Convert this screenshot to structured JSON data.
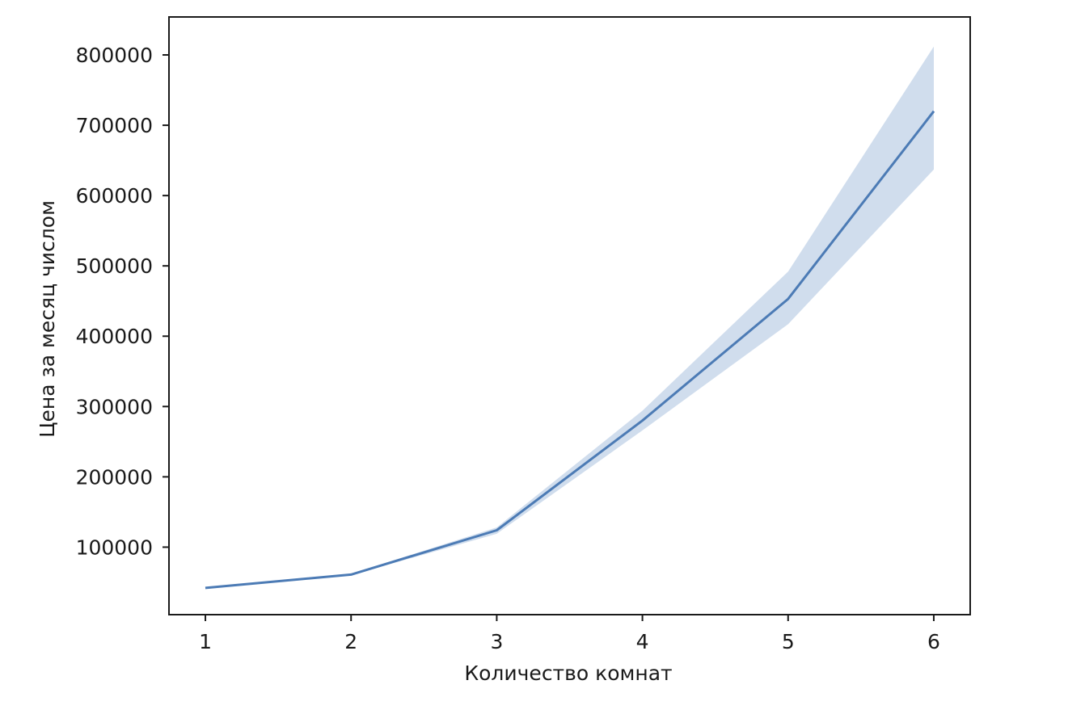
{
  "chart_data": {
    "type": "line",
    "title": "",
    "xlabel": "Количество комнат",
    "ylabel": "Цена за месяц числом",
    "x": [
      1,
      2,
      3,
      4,
      5,
      6
    ],
    "x_tick_labels": [
      "1",
      "2",
      "3",
      "4",
      "5",
      "6"
    ],
    "y_ticks": [
      100000,
      200000,
      300000,
      400000,
      500000,
      600000,
      700000,
      800000
    ],
    "y_tick_labels": [
      "100000",
      "200000",
      "300000",
      "400000",
      "500000",
      "600000",
      "700000",
      "800000"
    ],
    "xlim": [
      0.75,
      6.25
    ],
    "ylim": [
      4000,
      854000
    ],
    "grid": false,
    "legend": "none",
    "series": [
      {
        "values": [
          42000,
          61000,
          124000,
          280000,
          453000,
          720000
        ],
        "ci_lower": [
          41000,
          60000,
          119000,
          266000,
          417000,
          637000
        ],
        "ci_upper": [
          43000,
          62000,
          128000,
          294000,
          492000,
          812000
        ],
        "color": "#4c7bb5"
      }
    ],
    "band_color": "#c8d7ea"
  }
}
